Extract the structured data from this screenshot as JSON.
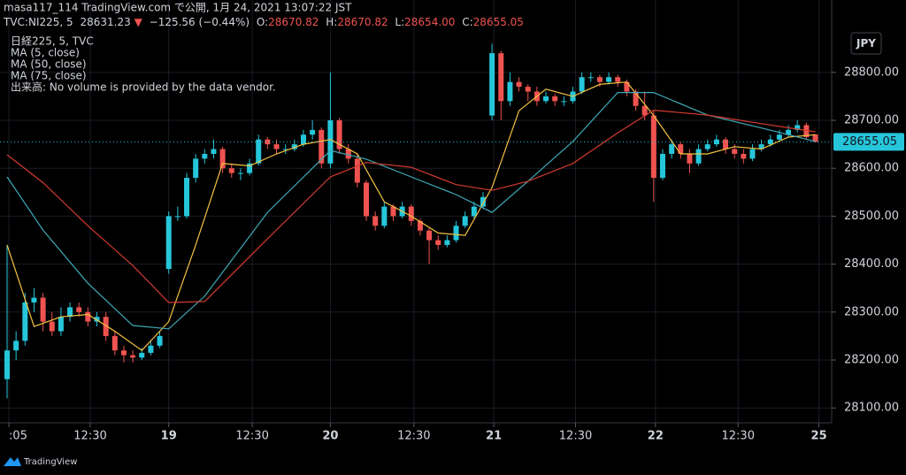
{
  "header": {
    "line1": "masa117_114 TradingView.com で公開, 1月 24, 2021 13:07:22 JST",
    "symbol": "TVC:NI225, 5",
    "quote": "28631.23",
    "arrow": "▼",
    "change": "−125.56 (−0.44%)",
    "ohlc": [
      {
        "label": "O:",
        "value": "28670.82"
      },
      {
        "label": "H:",
        "value": "28670.82"
      },
      {
        "label": "L:",
        "value": "28654.00"
      },
      {
        "label": "C:",
        "value": "28655.05"
      }
    ]
  },
  "legend": {
    "main": "日経225, 5, TVC",
    "volume_note": "出来高: No volume is provided by the data vendor."
  },
  "currency_button": "JPY",
  "footer": {
    "brand": "TradingView"
  },
  "chart_data": {
    "type": "candlestick",
    "up_color": "#26c6da",
    "down_color": "#ef5350",
    "grid": true,
    "candles": [
      [
        28160,
        28440,
        28120,
        28220
      ],
      [
        28220,
        28260,
        28200,
        28240
      ],
      [
        28240,
        28340,
        28230,
        28320
      ],
      [
        28320,
        28350,
        28300,
        28330
      ],
      [
        28330,
        28340,
        28260,
        28280
      ],
      [
        28280,
        28300,
        28250,
        28260
      ],
      [
        28260,
        28310,
        28250,
        28290
      ],
      [
        28290,
        28320,
        28280,
        28310
      ],
      [
        28310,
        28320,
        28290,
        28300
      ],
      [
        28300,
        28310,
        28270,
        28280
      ],
      [
        28280,
        28300,
        28270,
        28290
      ],
      [
        28290,
        28300,
        28240,
        28250
      ],
      [
        28250,
        28260,
        28210,
        28220
      ],
      [
        28220,
        28230,
        28195,
        28210
      ],
      [
        28210,
        28220,
        28195,
        28205
      ],
      [
        28205,
        28225,
        28200,
        28215
      ],
      [
        28215,
        28240,
        28210,
        28230
      ],
      [
        28230,
        28260,
        28225,
        28250
      ],
      [
        28390,
        28510,
        28380,
        28500
      ],
      [
        28500,
        28520,
        28490,
        28500
      ],
      [
        28500,
        28590,
        28495,
        28580
      ],
      [
        28580,
        28630,
        28570,
        28620
      ],
      [
        28620,
        28640,
        28610,
        28630
      ],
      [
        28630,
        28660,
        28620,
        28640
      ],
      [
        28640,
        28645,
        28590,
        28600
      ],
      [
        28600,
        28610,
        28580,
        28590
      ],
      [
        28590,
        28600,
        28575,
        28590
      ],
      [
        28590,
        28620,
        28585,
        28610
      ],
      [
        28610,
        28670,
        28605,
        28660
      ],
      [
        28660,
        28665,
        28640,
        28650
      ],
      [
        28650,
        28660,
        28630,
        28640
      ],
      [
        28640,
        28650,
        28630,
        28640
      ],
      [
        28640,
        28660,
        28635,
        28650
      ],
      [
        28650,
        28680,
        28645,
        28670
      ],
      [
        28670,
        28700,
        28660,
        28680
      ],
      [
        28680,
        28685,
        28600,
        28610
      ],
      [
        28610,
        28800,
        28600,
        28700
      ],
      [
        28700,
        28705,
        28630,
        28640
      ],
      [
        28640,
        28650,
        28610,
        28620
      ],
      [
        28620,
        28630,
        28560,
        28570
      ],
      [
        28570,
        28575,
        28490,
        28500
      ],
      [
        28500,
        28510,
        28470,
        28480
      ],
      [
        28480,
        28530,
        28475,
        28520
      ],
      [
        28520,
        28525,
        28490,
        28500
      ],
      [
        28500,
        28530,
        28495,
        28520
      ],
      [
        28520,
        28525,
        28480,
        28490
      ],
      [
        28490,
        28495,
        28460,
        28470
      ],
      [
        28470,
        28475,
        28400,
        28450
      ],
      [
        28450,
        28460,
        28430,
        28440
      ],
      [
        28440,
        28460,
        28435,
        28450
      ],
      [
        28450,
        28490,
        28445,
        28480
      ],
      [
        28480,
        28510,
        28475,
        28500
      ],
      [
        28500,
        28530,
        28495,
        28520
      ],
      [
        28520,
        28550,
        28515,
        28540
      ],
      [
        28710,
        28860,
        28700,
        28840
      ],
      [
        28840,
        28845,
        28700,
        28740
      ],
      [
        28740,
        28800,
        28730,
        28780
      ],
      [
        28780,
        28790,
        28760,
        28770
      ],
      [
        28770,
        28775,
        28740,
        28760
      ],
      [
        28760,
        28770,
        28730,
        28740
      ],
      [
        28740,
        28760,
        28735,
        28750
      ],
      [
        28750,
        28755,
        28730,
        28740
      ],
      [
        28740,
        28750,
        28730,
        28740
      ],
      [
        28740,
        28770,
        28735,
        28760
      ],
      [
        28760,
        28800,
        28755,
        28790
      ],
      [
        28790,
        28800,
        28780,
        28790
      ],
      [
        28790,
        28795,
        28770,
        28780
      ],
      [
        28780,
        28800,
        28775,
        28790
      ],
      [
        28790,
        28795,
        28770,
        28780
      ],
      [
        28780,
        28785,
        28750,
        28760
      ],
      [
        28760,
        28765,
        28720,
        28730
      ],
      [
        28730,
        28760,
        28700,
        28710
      ],
      [
        28710,
        28720,
        28530,
        28580
      ],
      [
        28580,
        28640,
        28575,
        28630
      ],
      [
        28630,
        28660,
        28620,
        28650
      ],
      [
        28650,
        28655,
        28620,
        28630
      ],
      [
        28630,
        28640,
        28590,
        28610
      ],
      [
        28610,
        28650,
        28605,
        28640
      ],
      [
        28640,
        28660,
        28635,
        28650
      ],
      [
        28650,
        28670,
        28645,
        28660
      ],
      [
        28660,
        28665,
        28630,
        28640
      ],
      [
        28640,
        28650,
        28620,
        28630
      ],
      [
        28630,
        28640,
        28610,
        28620
      ],
      [
        28620,
        28650,
        28615,
        28640
      ],
      [
        28640,
        28660,
        28635,
        28650
      ],
      [
        28650,
        28670,
        28645,
        28660
      ],
      [
        28660,
        28680,
        28655,
        28670
      ],
      [
        28670,
        28690,
        28665,
        28680
      ],
      [
        28680,
        28700,
        28675,
        28690
      ],
      [
        28690,
        28695,
        28660,
        28665
      ],
      [
        28670.82,
        28670.82,
        28654,
        28655.05
      ]
    ],
    "series": [
      {
        "name": "MA (5, close)",
        "color": "#f5c242",
        "x": [
          0,
          3,
          6,
          9,
          12,
          15,
          18,
          21,
          24,
          27,
          30,
          33,
          36,
          39,
          42,
          45,
          48,
          51,
          54,
          57,
          60,
          63,
          66,
          69,
          72,
          75,
          78,
          81,
          84,
          87,
          90
        ],
        "values": [
          28440,
          28270,
          28290,
          28295,
          28260,
          28220,
          28280,
          28440,
          28610,
          28605,
          28630,
          28650,
          28660,
          28630,
          28530,
          28500,
          28465,
          28460,
          28560,
          28720,
          28765,
          28750,
          28775,
          28780,
          28710,
          28630,
          28630,
          28645,
          28640,
          28665,
          28670
        ]
      },
      {
        "name": "MA (50, close)",
        "color": "#3fa9b8",
        "x": [
          0,
          4,
          9,
          14,
          18,
          22,
          29,
          36,
          40,
          45,
          50,
          54,
          58,
          63,
          68,
          72,
          78,
          84,
          90
        ],
        "values": [
          28582,
          28471,
          28360,
          28272,
          28265,
          28333,
          28508,
          28637,
          28619,
          28582,
          28545,
          28508,
          28573,
          28656,
          28758,
          28758,
          28711,
          28684,
          28656
        ]
      },
      {
        "name": "MA (75, close)",
        "color": "#d33b2f",
        "x": [
          0,
          4,
          9,
          14,
          18,
          22,
          29,
          36,
          40,
          45,
          50,
          54,
          58,
          63,
          68,
          72,
          78,
          84,
          90
        ],
        "values": [
          28628,
          28570,
          28480,
          28397,
          28320,
          28322,
          28453,
          28582,
          28612,
          28602,
          28566,
          28554,
          28573,
          28610,
          28674,
          28721,
          28711,
          28693,
          28676
        ]
      }
    ],
    "xlim": [
      -0.79,
      91.82
    ],
    "ylim": [
      28069,
      28951
    ],
    "xticks": [
      {
        "value": 0.2,
        "label": ":05"
      },
      {
        "value": 9.26,
        "label": "12:30"
      },
      {
        "value": 18,
        "label": "19"
      },
      {
        "value": 27.3,
        "label": "12:30"
      },
      {
        "value": 36,
        "label": "20"
      },
      {
        "value": 45.3,
        "label": "12:30"
      },
      {
        "value": 54.2,
        "label": "21"
      },
      {
        "value": 63.3,
        "label": "12:30"
      },
      {
        "value": 72.2,
        "label": "22"
      },
      {
        "value": 81.4,
        "label": "12:30"
      },
      {
        "value": 90.4,
        "label": "25"
      }
    ],
    "yticks": [
      {
        "value": 28100,
        "label": "28100.00"
      },
      {
        "value": 28200,
        "label": "28200.00"
      },
      {
        "value": 28300,
        "label": "28300.00"
      },
      {
        "value": 28400,
        "label": "28400.00"
      },
      {
        "value": 28500,
        "label": "28500.00"
      },
      {
        "value": 28600,
        "label": "28600.00"
      },
      {
        "value": 28700,
        "label": "28700.00"
      },
      {
        "value": 28800,
        "label": "28800.00"
      }
    ]
  }
}
